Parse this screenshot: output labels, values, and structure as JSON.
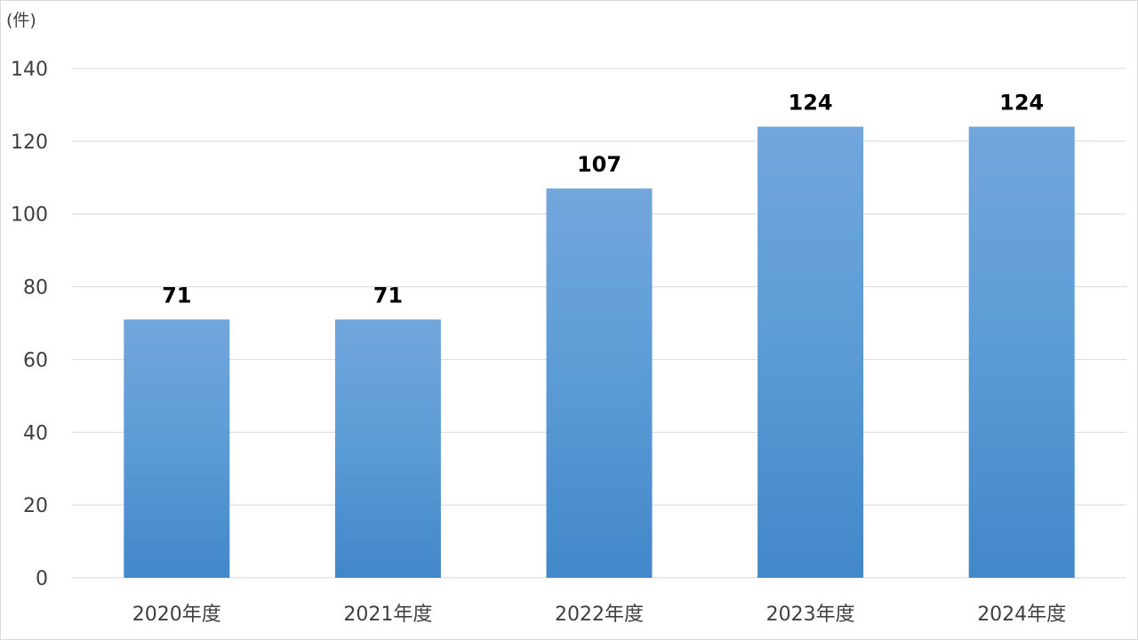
{
  "chart_data": {
    "type": "bar",
    "unit_label": "(件)",
    "categories": [
      "2020年度",
      "2021年度",
      "2022年度",
      "2023年度",
      "2024年度"
    ],
    "values": [
      71,
      71,
      107,
      124,
      124
    ],
    "ylim": [
      0,
      140
    ],
    "yticks": [
      0,
      20,
      40,
      60,
      80,
      100,
      120,
      140
    ],
    "grid": true,
    "legend": "none",
    "data_labels": true,
    "colors": {
      "bar_top": "#72a6dc",
      "bar_mid": "#5b9bd5",
      "bar_bottom": "#4287c9",
      "grid": "#d9d9d9",
      "text": "#404040"
    }
  }
}
